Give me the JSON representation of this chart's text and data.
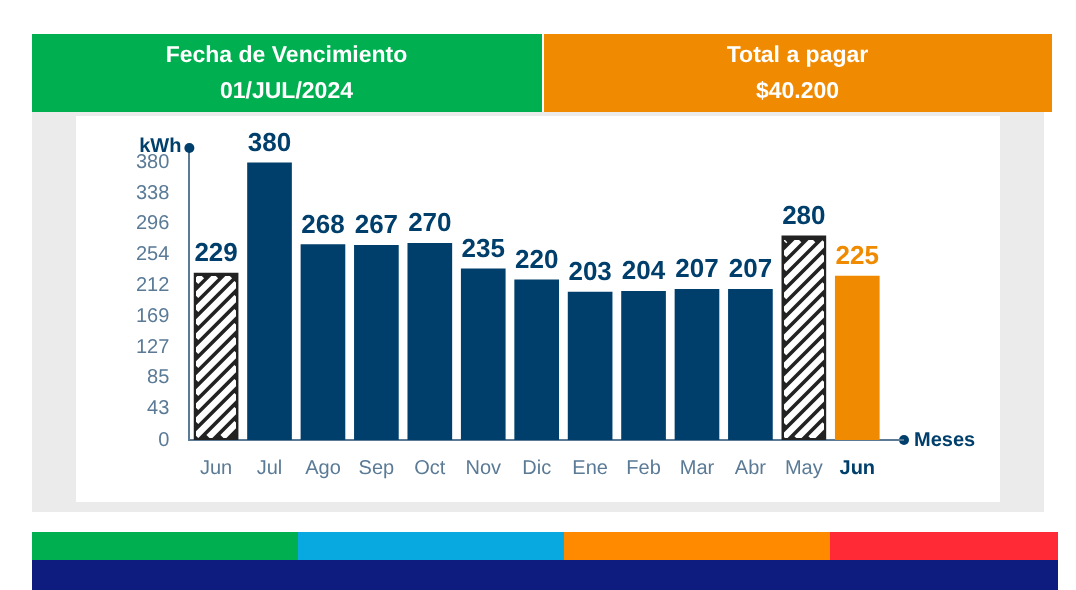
{
  "chart_data": {
    "type": "bar",
    "ylabel": "kWh",
    "xlabel": "Meses",
    "annotations": [
      "Fecha de Vencimiento",
      "01/JUL/2024",
      "Total a pagar",
      "$40.200"
    ],
    "categories": [
      "Jun",
      "Jul",
      "Ago",
      "Sep",
      "Oct",
      "Nov",
      "Dic",
      "Ene",
      "Feb",
      "Mar",
      "Abr",
      "May",
      "Jun"
    ],
    "series": [
      {
        "color": "#003f6b",
        "values": [
          229,
          380,
          268,
          267,
          270,
          235,
          220,
          203,
          204,
          207,
          207,
          280,
          225
        ],
        "colors": [
          "#222222",
          "#003f6b",
          "#003f6b",
          "#003f6b",
          "#003f6b",
          "#003f6b",
          "#003f6b",
          "#003f6b",
          "#003f6b",
          "#003f6b",
          "#003f6b",
          "#222222",
          "#f08a00"
        ]
      }
    ],
    "ylim": [
      0,
      400
    ],
    "yticks": [
      0,
      43,
      85,
      127,
      169,
      212,
      254,
      296,
      338,
      380
    ],
    "grid": false,
    "legend": false,
    "data_labels": true
  }
}
